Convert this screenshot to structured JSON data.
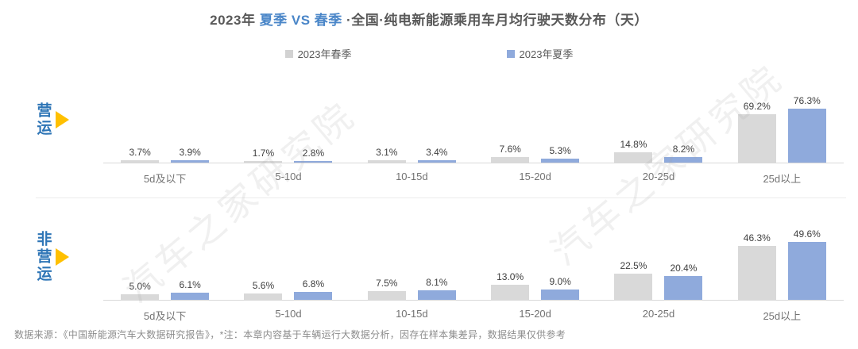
{
  "title": {
    "prefix": "2023年 ",
    "highlight": "夏季 VS 春季",
    "suffix": " ·全国·纯电新能源乘用车月均行驶天数分布（天）"
  },
  "legend": [
    {
      "label": "2023年春季",
      "color": "#d2d2d2"
    },
    {
      "label": "2023年夏季",
      "color": "#8faadc"
    }
  ],
  "colors": {
    "spring_bar": "#d9d9d9",
    "summer_bar": "#8faadc",
    "title_highlight": "#4a86c8",
    "row_label": "#2e75b6",
    "row_triangle": "#ffc000"
  },
  "watermark": "汽车之家研究院",
  "footer": "数据来源：《中国新能源汽车大数据研究报告》，*注：本章内容基于车辆运行大数据分析，因存在样本集差异，数据结果仅供参考",
  "chart_data": [
    {
      "type": "bar",
      "title": "营运",
      "categories": [
        "5d及以下",
        "5-10d",
        "10-15d",
        "15-20d",
        "20-25d",
        "25d以上"
      ],
      "series": [
        {
          "name": "2023年春季",
          "values": [
            3.7,
            1.7,
            3.1,
            7.6,
            14.8,
            69.2
          ]
        },
        {
          "name": "2023年夏季",
          "values": [
            3.9,
            2.8,
            3.4,
            5.3,
            8.2,
            76.3
          ]
        }
      ],
      "unit": "%",
      "ylim": [
        0,
        80
      ],
      "grid": false,
      "legend_position": "top"
    },
    {
      "type": "bar",
      "title": "非营运",
      "categories": [
        "5d及以下",
        "5-10d",
        "10-15d",
        "15-20d",
        "20-25d",
        "25d以上"
      ],
      "series": [
        {
          "name": "2023年春季",
          "values": [
            5.0,
            5.6,
            7.5,
            13.0,
            22.5,
            46.3
          ]
        },
        {
          "name": "2023年夏季",
          "values": [
            6.1,
            6.8,
            8.1,
            9.0,
            20.4,
            49.6
          ]
        }
      ],
      "unit": "%",
      "ylim": [
        0,
        55
      ],
      "grid": false,
      "legend_position": "top"
    }
  ]
}
